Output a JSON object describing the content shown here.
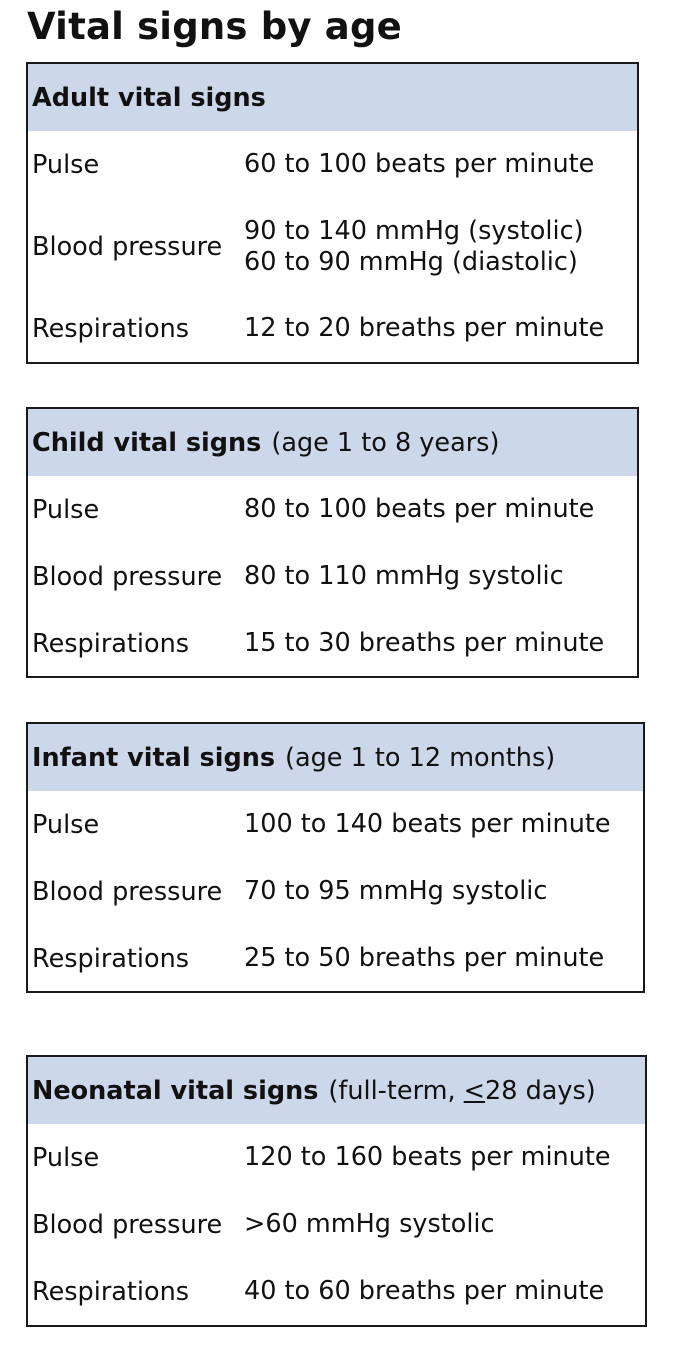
{
  "title": "Vital signs by age",
  "tables": [
    {
      "heading": "Adult vital signs",
      "note": "",
      "rows": [
        {
          "label": "Pulse",
          "value": "60 to 100 beats per minute"
        },
        {
          "label": "Blood pressure",
          "value": "90 to 140 mmHg (systolic)",
          "value2": "60 to 90 mmHg (diastolic)"
        },
        {
          "label": "Respirations",
          "value": "12 to 20 breaths per minute"
        }
      ]
    },
    {
      "heading": "Child vital signs",
      "note": "(age 1 to 8 years)",
      "rows": [
        {
          "label": "Pulse",
          "value": "80 to 100 beats per minute"
        },
        {
          "label": "Blood pressure",
          "value": "80 to 110 mmHg systolic"
        },
        {
          "label": "Respirations",
          "value": "15 to 30 breaths per minute"
        }
      ]
    },
    {
      "heading": "Infant vital signs",
      "note": "(age 1 to 12 months)",
      "rows": [
        {
          "label": "Pulse",
          "value": "100 to 140 beats per minute"
        },
        {
          "label": "Blood pressure",
          "value": "70 to 95 mmHg systolic"
        },
        {
          "label": "Respirations",
          "value": "25 to 50 breaths per minute"
        }
      ]
    },
    {
      "heading": "Neonatal vital signs",
      "note_before": "(full-term, ",
      "note_symbol": "<",
      "note_after": "28 days)",
      "rows": [
        {
          "label": "Pulse",
          "value": "120 to 160 beats per minute"
        },
        {
          "label": "Blood pressure",
          "value": ">60 mmHg systolic"
        },
        {
          "label": "Respirations",
          "value": "40 to 60 breaths per minute"
        }
      ]
    }
  ],
  "colors": {
    "header_background": "#cdd7ea",
    "border": "#1a1a1a",
    "text": "#111111"
  }
}
